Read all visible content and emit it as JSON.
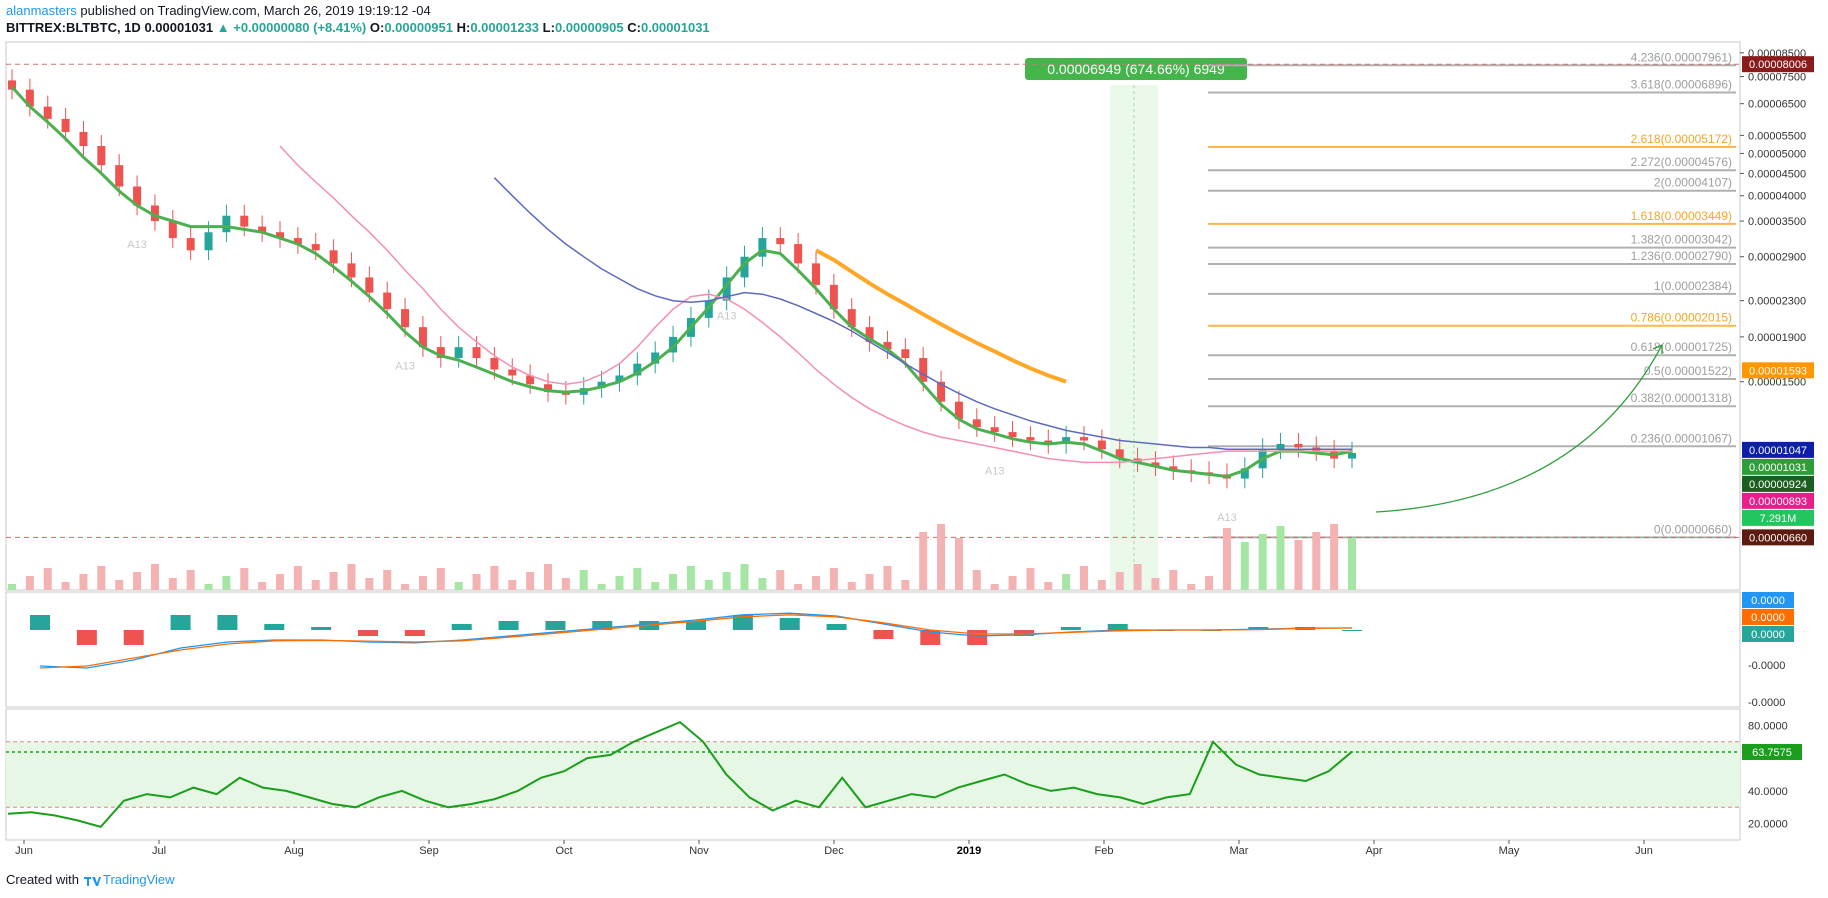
{
  "header": {
    "author": "alanmasters",
    "published": " published on TradingView.com, March 26, 2019 19:19:12 -04",
    "symbol": "BITTREX:BLTBTC, 1D",
    "last": "0.00001031",
    "change": "▲ +0.00000080 (+8.41%)",
    "o_label": "O:",
    "o": "0.00000951",
    "h_label": "H:",
    "h": "0.00001233",
    "l_label": "L:",
    "l": "0.00000905",
    "c_label": "C:",
    "c": "0.00001031"
  },
  "footer": {
    "created_with": "Created with",
    "brand": "TradingView"
  },
  "colors": {
    "up": "#26a69a",
    "down": "#ef5350",
    "sma_green": "#4caf50",
    "sma_pink": "#f48fb1",
    "sma_blue": "#5c6bc0",
    "sma_orange": "#ffa726",
    "fib_gray": "#b0b0b0",
    "fib_orange": "#ffb74d",
    "rsi_line": "#1b9e1b",
    "rsi_fill": "#e6f7e6"
  },
  "chart_data": [
    {
      "type": "candlestick",
      "scale": "log",
      "ylim": [
        5e-06,
        9e-05
      ],
      "x_ticks": [
        "Jun",
        "Jul",
        "Aug",
        "Sep",
        "Oct",
        "Nov",
        "Dec",
        "2019",
        "Feb",
        "Mar",
        "Apr",
        "May",
        "Jun"
      ],
      "y_ticks": [
        "0.00008500",
        "0.00007500",
        "0.00006500",
        "0.00005500",
        "0.00005000",
        "0.00004500",
        "0.00004000",
        "0.00003500",
        "0.00002900",
        "0.00002300",
        "0.00001900",
        "0.00001500"
      ],
      "series": [
        {
          "name": "price_close",
          "values": [
            7e-05,
            6.4e-05,
            6e-05,
            5.6e-05,
            5.2e-05,
            4.7e-05,
            4.2e-05,
            3.8e-05,
            3.5e-05,
            3.2e-05,
            3e-05,
            3.3e-05,
            3.6e-05,
            3.4e-05,
            3.3e-05,
            3.2e-05,
            3.1e-05,
            3e-05,
            2.8e-05,
            2.6e-05,
            2.4e-05,
            2.2e-05,
            2e-05,
            1.8e-05,
            1.7e-05,
            1.8e-05,
            1.7e-05,
            1.6e-05,
            1.55e-05,
            1.48e-05,
            1.42e-05,
            1.4e-05,
            1.45e-05,
            1.5e-05,
            1.55e-05,
            1.65e-05,
            1.75e-05,
            1.9e-05,
            2.1e-05,
            2.3e-05,
            2.6e-05,
            2.9e-05,
            3.2e-05,
            3.1e-05,
            2.8e-05,
            2.5e-05,
            2.2e-05,
            2e-05,
            1.85e-05,
            1.78e-05,
            1.7e-05,
            1.5e-05,
            1.35e-05,
            1.23e-05,
            1.18e-05,
            1.15e-05,
            1.12e-05,
            1.1e-05,
            1.08e-05,
            1.12e-05,
            1.1e-05,
            1.05e-05,
            1e-05,
            9.8e-06,
            9.6e-06,
            9.4e-06,
            9.3e-06,
            9.2e-06,
            9e-06,
            9.5e-06,
            1.05e-05,
            1.08e-05,
            1.06e-05,
            1.04e-05,
            1e-05,
            1.03e-05
          ]
        },
        {
          "name": "sma_fast",
          "values": [
            7.1e-05,
            6.4e-05,
            5.9e-05,
            5.4e-05,
            4.9e-05,
            4.5e-05,
            4.1e-05,
            3.8e-05,
            3.6e-05,
            3.5e-05,
            3.4e-05,
            3.4e-05,
            3.4e-05,
            3.35e-05,
            3.3e-05,
            3.2e-05,
            3.1e-05,
            2.95e-05,
            2.75e-05,
            2.55e-05,
            2.35e-05,
            2.15e-05,
            1.95e-05,
            1.8e-05,
            1.72e-05,
            1.68e-05,
            1.62e-05,
            1.56e-05,
            1.5e-05,
            1.46e-05,
            1.43e-05,
            1.42e-05,
            1.43e-05,
            1.46e-05,
            1.5e-05,
            1.57e-05,
            1.67e-05,
            1.8e-05,
            2e-05,
            2.22e-05,
            2.5e-05,
            2.8e-05,
            3e-05,
            2.95e-05,
            2.7e-05,
            2.45e-05,
            2.2e-05,
            2e-05,
            1.88e-05,
            1.78e-05,
            1.65e-05,
            1.48e-05,
            1.33e-05,
            1.23e-05,
            1.17e-05,
            1.14e-05,
            1.11e-05,
            1.09e-05,
            1.08e-05,
            1.09e-05,
            1.08e-05,
            1.04e-05,
            1e-05,
            9.8e-06,
            9.6e-06,
            9.4e-06,
            9.3e-06,
            9.2e-06,
            9.1e-06,
            9.4e-06,
            1e-05,
            1.04e-05,
            1.04e-05,
            1.03e-05,
            1.02e-05,
            1.04e-05
          ]
        },
        {
          "name": "sma_pink",
          "start": 15,
          "values": [
            5.2e-05,
            4.7e-05,
            4.3e-05,
            3.95e-05,
            3.6e-05,
            3.3e-05,
            3e-05,
            2.7e-05,
            2.45e-05,
            2.2e-05,
            2e-05,
            1.85e-05,
            1.72e-05,
            1.62e-05,
            1.55e-05,
            1.5e-05,
            1.48e-05,
            1.5e-05,
            1.56e-05,
            1.65e-05,
            1.8e-05,
            2e-05,
            2.2e-05,
            2.35e-05,
            2.38e-05,
            2.32e-05,
            2.2e-05,
            2.05e-05,
            1.9e-05,
            1.75e-05,
            1.6e-05,
            1.48e-05,
            1.38e-05,
            1.3e-05,
            1.24e-05,
            1.19e-05,
            1.15e-05,
            1.12e-05,
            1.1e-05,
            1.08e-05,
            1.06e-05,
            1.04e-05,
            1.02e-05,
            1e-05,
            9.9e-06,
            9.8e-06,
            9.8e-06,
            9.8e-06,
            9.9e-06,
            1e-05,
            1.01e-05,
            1.02e-05,
            1.03e-05,
            1.04e-05,
            1.04e-05,
            1.04e-05,
            1.04e-05,
            1.04e-05,
            1.04e-05,
            1.04e-05,
            1.04e-05
          ]
        },
        {
          "name": "sma_blue",
          "start": 27,
          "values": [
            4.4e-05,
            4e-05,
            3.65e-05,
            3.35e-05,
            3.1e-05,
            2.9e-05,
            2.72e-05,
            2.58e-05,
            2.45e-05,
            2.36e-05,
            2.3e-05,
            2.28e-05,
            2.3e-05,
            2.35e-05,
            2.4e-05,
            2.38e-05,
            2.32e-05,
            2.24e-05,
            2.15e-05,
            2.06e-05,
            1.96e-05,
            1.85e-05,
            1.75e-05,
            1.65e-05,
            1.56e-05,
            1.48e-05,
            1.41e-05,
            1.35e-05,
            1.3e-05,
            1.26e-05,
            1.22e-05,
            1.19e-05,
            1.16e-05,
            1.14e-05,
            1.12e-05,
            1.1e-05,
            1.09e-05,
            1.08e-05,
            1.07e-05,
            1.06e-05,
            1.06e-05,
            1.05e-05,
            1.05e-05,
            1.05e-05,
            1.05e-05,
            1.05e-05,
            1.05e-05,
            1.05e-05,
            1.05e-05
          ]
        },
        {
          "name": "sma_orange",
          "start": 45,
          "values": [
            3e-05,
            2.85e-05,
            2.68e-05,
            2.52e-05,
            2.38e-05,
            2.26e-05,
            2.14e-05,
            2.03e-05,
            1.93e-05,
            1.84e-05,
            1.76e-05,
            1.68e-05,
            1.61e-05,
            1.55e-05,
            1.5e-05
          ]
        }
      ],
      "fib_levels": [
        {
          "label": "4.236(0.00007961)",
          "value": 7.961e-05,
          "highlight": false
        },
        {
          "label": "3.618(0.00006896)",
          "value": 6.896e-05,
          "highlight": false
        },
        {
          "label": "2.618(0.00005172)",
          "value": 5.172e-05,
          "highlight": true
        },
        {
          "label": "2.272(0.00004576)",
          "value": 4.576e-05,
          "highlight": false
        },
        {
          "label": "2(0.00004107)",
          "value": 4.107e-05,
          "highlight": false
        },
        {
          "label": "1.618(0.00003449)",
          "value": 3.449e-05,
          "highlight": true
        },
        {
          "label": "1.382(0.00003042)",
          "value": 3.042e-05,
          "highlight": false
        },
        {
          "label": "1.236(0.00002790)",
          "value": 2.79e-05,
          "highlight": false
        },
        {
          "label": "1(0.00002384)",
          "value": 2.384e-05,
          "highlight": false
        },
        {
          "label": "0.786(0.00002015)",
          "value": 2.015e-05,
          "highlight": true
        },
        {
          "label": "0.618(0.00001725)",
          "value": 1.725e-05,
          "highlight": false
        },
        {
          "label": "0.5(0.00001522)",
          "value": 1.522e-05,
          "highlight": false
        },
        {
          "label": "0.382(0.00001318)",
          "value": 1.318e-05,
          "highlight": false
        },
        {
          "label": "0.236(0.00001067)",
          "value": 1.067e-05,
          "highlight": false
        },
        {
          "label": "0(0.00000660)",
          "value": 6.6e-06,
          "highlight": false
        }
      ],
      "price_range_label": "0.00006949 (674.66%) 6949",
      "price_tags": [
        {
          "label": "0.00008006",
          "value": 8.006e-05,
          "bg": "#8b1a1a"
        },
        {
          "label": "0.00001593",
          "value": 1.593e-05,
          "bg": "#ff9800"
        },
        {
          "label": "0.00001047",
          "value": 1.047e-05,
          "bg": "#0d1ea8"
        },
        {
          "label": "0.00001031",
          "value": 1.031e-05,
          "bg": "#2e9e3a"
        },
        {
          "label": "0.00000924",
          "value": 9.24e-06,
          "bg": "#1b5e20"
        },
        {
          "label": "0.00000893",
          "value": 8.93e-06,
          "bg": "#e91e8c"
        },
        {
          "label": "7.291M",
          "value": 7.8e-06,
          "bg": "#22c55e"
        },
        {
          "label": "0.00000660",
          "value": 6.6e-06,
          "bg": "#5d1a0e"
        }
      ],
      "markers": [
        "A13",
        "A13",
        "A13",
        "A13",
        "A13",
        "A13"
      ]
    },
    {
      "type": "macd",
      "y_ticks": [
        "-0.0000",
        "-0.0000"
      ],
      "tags": [
        {
          "label": "0.0000",
          "bg": "#2196f3"
        },
        {
          "label": "0.0000",
          "bg": "#ff6d00"
        },
        {
          "label": "0.0000",
          "bg": "#26a69a"
        }
      ],
      "series": [
        {
          "name": "macd",
          "values": [
            -0.9,
            -0.95,
            -0.75,
            -0.45,
            -0.3,
            -0.25,
            -0.25,
            -0.3,
            -0.32,
            -0.25,
            -0.15,
            -0.05,
            0.05,
            0.15,
            0.25,
            0.38,
            0.42,
            0.35,
            0.15,
            -0.05,
            -0.15,
            -0.12,
            -0.05,
            0.0,
            0.0,
            0.0,
            0.02,
            0.05,
            0.05
          ]
        },
        {
          "name": "signal",
          "values": [
            -0.95,
            -0.9,
            -0.7,
            -0.5,
            -0.35,
            -0.27,
            -0.26,
            -0.28,
            -0.3,
            -0.27,
            -0.18,
            -0.08,
            0.02,
            0.12,
            0.22,
            0.33,
            0.38,
            0.33,
            0.18,
            0.0,
            -0.1,
            -0.1,
            -0.06,
            -0.02,
            0.0,
            0.0,
            0.01,
            0.04,
            0.05
          ]
        }
      ]
    },
    {
      "type": "line",
      "name": "RSI",
      "ylim": [
        10,
        90
      ],
      "y_ticks": [
        "80.0000",
        "40.0000",
        "20.0000"
      ],
      "bands": [
        30,
        70
      ],
      "last_label": "63.7575",
      "last": 63.7575,
      "values": [
        26,
        27,
        25,
        22,
        18,
        34,
        38,
        36,
        42,
        38,
        48,
        42,
        40,
        36,
        32,
        30,
        36,
        40,
        34,
        30,
        32,
        35,
        40,
        48,
        52,
        60,
        62,
        70,
        76,
        82,
        70,
        50,
        36,
        28,
        34,
        30,
        48,
        30,
        34,
        38,
        36,
        42,
        46,
        50,
        44,
        40,
        42,
        38,
        36,
        32,
        36,
        38,
        70,
        56,
        50,
        48,
        46,
        52,
        64
      ]
    }
  ]
}
